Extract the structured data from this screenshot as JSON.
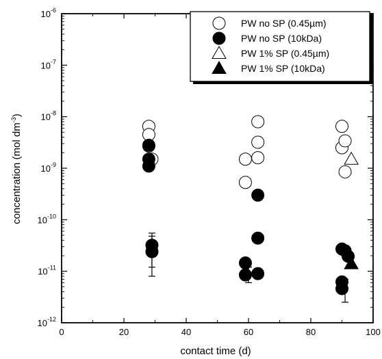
{
  "chart_data": {
    "type": "scatter",
    "title": "",
    "xlabel": "contact time (d)",
    "ylabel": "concentration (mol dm⁻³)",
    "ylabel_main": "concentration (mol dm",
    "ylabel_exp": "-3",
    "ylabel_tail": ")",
    "xlim": [
      0,
      100
    ],
    "ylim": [
      1e-12,
      1e-06
    ],
    "yscale": "log",
    "grid": false,
    "legend_position": "top-right",
    "x_ticks": [
      0,
      20,
      40,
      60,
      80,
      100
    ],
    "y_ticks": [
      {
        "value": 1e-12,
        "base": "10",
        "exp": "-12"
      },
      {
        "value": 1e-11,
        "base": "10",
        "exp": "-11"
      },
      {
        "value": 1e-10,
        "base": "10",
        "exp": "-10"
      },
      {
        "value": 1e-09,
        "base": "10",
        "exp": "-9"
      },
      {
        "value": 1e-08,
        "base": "10",
        "exp": "-8"
      },
      {
        "value": 1e-07,
        "base": "10",
        "exp": "-7"
      },
      {
        "value": 1e-06,
        "base": "10",
        "exp": "-6"
      }
    ],
    "series": [
      {
        "name": "PW no SP (0.45µm)",
        "marker": "circle-open",
        "points": [
          [
            28,
            6.5e-09
          ],
          [
            28,
            4.5e-09
          ],
          [
            28,
            2.7e-09
          ],
          [
            29,
            1.5e-09
          ],
          [
            59,
            1.5e-09
          ],
          [
            59,
            5.3e-10
          ],
          [
            63,
            8e-09
          ],
          [
            63,
            3.2e-09
          ],
          [
            63,
            1.6e-09
          ],
          [
            90,
            6.5e-09
          ],
          [
            90,
            2.5e-09
          ],
          [
            91,
            3.4e-09
          ],
          [
            91,
            8.5e-10
          ]
        ]
      },
      {
        "name": "PW no SP (10kDa)",
        "marker": "circle-filled",
        "points": [
          [
            28,
            2.8e-09
          ],
          [
            28,
            1.5e-09
          ],
          [
            28,
            1.1e-09
          ],
          [
            29,
            3.2e-11
          ],
          [
            29,
            2.4e-11
          ],
          [
            59,
            1.45e-11
          ],
          [
            59,
            8.5e-12
          ],
          [
            63,
            3e-10
          ],
          [
            63,
            4.4e-11
          ],
          [
            63,
            9e-12
          ],
          [
            90,
            2.7e-11
          ],
          [
            91,
            2.5e-11
          ],
          [
            92,
            1.95e-11
          ],
          [
            90,
            6.2e-12
          ],
          [
            90,
            4.6e-12
          ]
        ]
      },
      {
        "name": "PW 1% SP (0.45µm)",
        "marker": "triangle-open",
        "points": [
          [
            93,
            1.5e-09
          ]
        ]
      },
      {
        "name": "PW 1% SP (10kDa)",
        "marker": "triangle-filled",
        "points": [
          [
            93,
            1.4e-11
          ]
        ]
      }
    ],
    "error_bars": [
      {
        "x": 29,
        "low": 8e-12,
        "high": 5.5e-11
      },
      {
        "x": 29,
        "low": 1.2e-11,
        "high": 4.8e-11
      },
      {
        "x": 60,
        "low": 6e-12,
        "high": 1.2e-11
      },
      {
        "x": 91,
        "low": 2.5e-12,
        "high": 7e-12
      }
    ]
  }
}
